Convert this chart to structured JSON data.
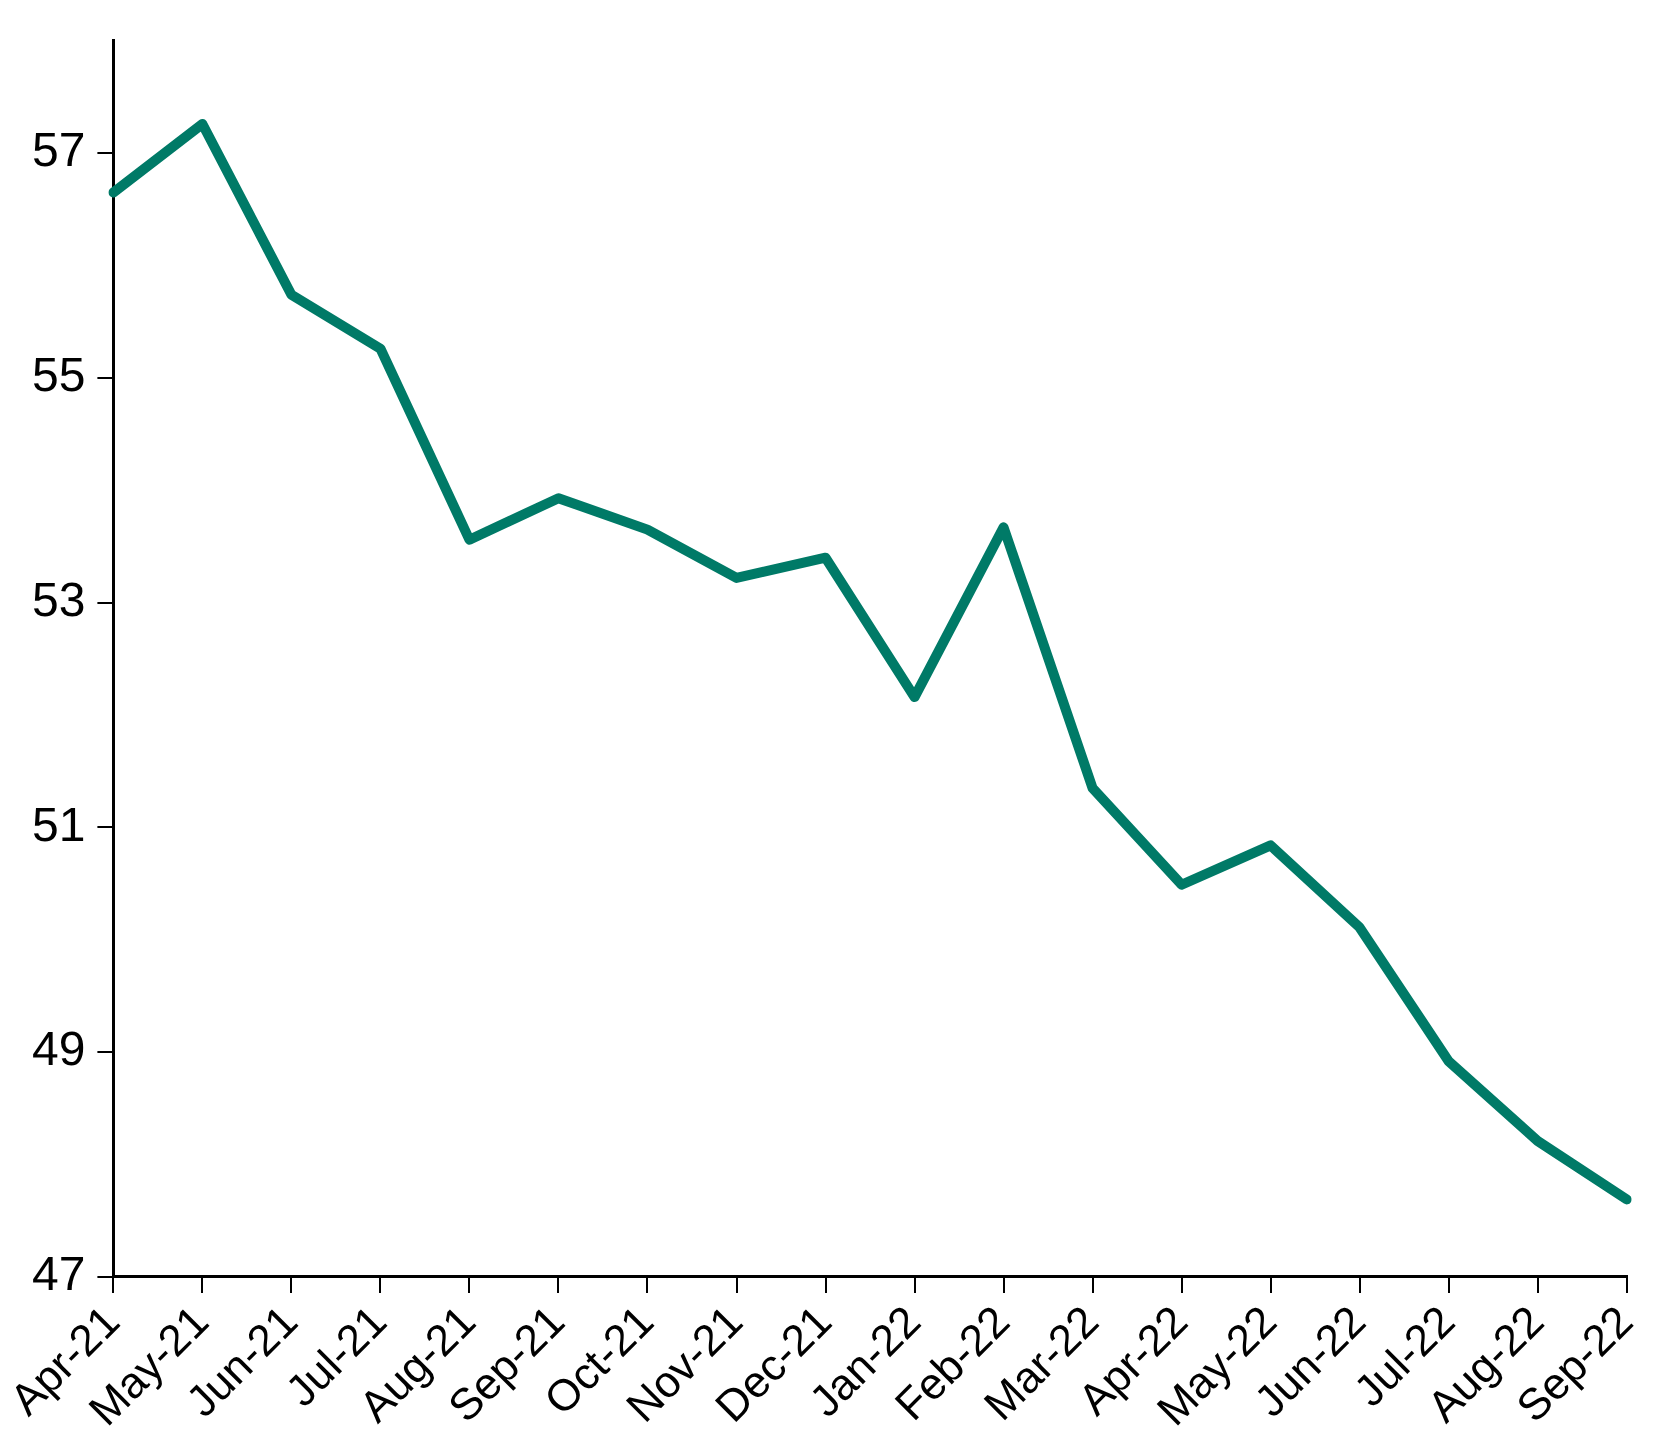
{
  "chart_data": {
    "type": "line",
    "categories": [
      "Apr-21",
      "May-21",
      "Jun-21",
      "Jul-21",
      "Aug-21",
      "Sep-21",
      "Oct-21",
      "Nov-21",
      "Dec-21",
      "Jan-22",
      "Feb-22",
      "Mar-22",
      "Apr-22",
      "May-22",
      "Jun-22",
      "Jul-22",
      "Aug-22",
      "Sep-22"
    ],
    "series": [
      {
        "color": "#007a67",
        "values": [
          56.65,
          57.26,
          55.74,
          55.26,
          53.56,
          53.93,
          53.65,
          53.22,
          53.4,
          52.16,
          53.67,
          51.35,
          50.49,
          50.84,
          50.11,
          48.92,
          48.21,
          47.69
        ]
      }
    ],
    "ylim": [
      47,
      58
    ],
    "yticks": [
      47,
      49,
      51,
      53,
      55,
      57
    ],
    "grid": false,
    "legend": false,
    "marker": "none",
    "line_style": "solid"
  }
}
